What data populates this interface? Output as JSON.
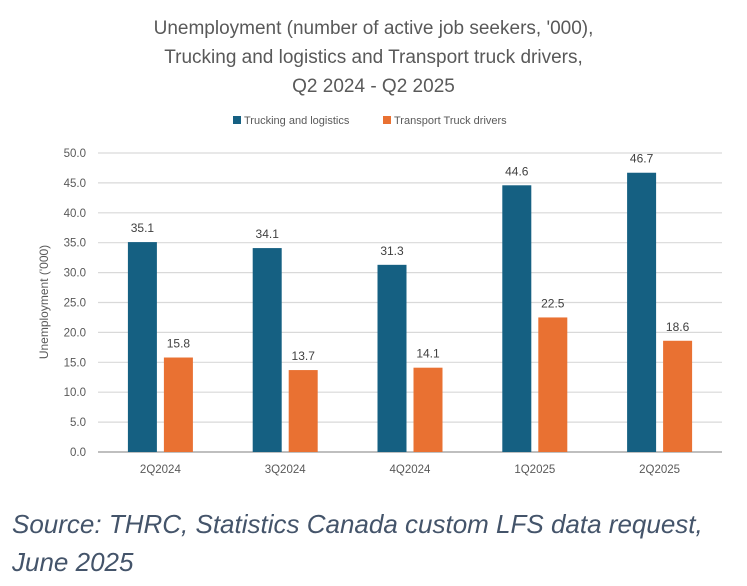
{
  "chart_data": {
    "type": "bar",
    "title_lines": [
      "Unemployment (number of active job seekers, '000),",
      "Trucking and logistics and Transport truck drivers,",
      "Q2 2024 - Q2 2025"
    ],
    "categories": [
      "2Q2024",
      "3Q2024",
      "4Q2024",
      "1Q2025",
      "2Q2025"
    ],
    "series": [
      {
        "name": "Trucking and logistics",
        "color": "#156082",
        "values": [
          35.1,
          34.1,
          31.3,
          44.6,
          46.7
        ]
      },
      {
        "name": "Transport Truck drivers",
        "color": "#e97132",
        "values": [
          15.8,
          13.7,
          14.1,
          22.5,
          18.6
        ]
      }
    ],
    "ylabel": "Unemployment ('000)",
    "xlabel": "",
    "ylim": [
      0,
      50
    ],
    "yticks": [
      "0.0",
      "5.0",
      "10.0",
      "15.0",
      "20.0",
      "25.0",
      "30.0",
      "35.0",
      "40.0",
      "45.0",
      "50.0"
    ],
    "grid": true,
    "legend": "top-center"
  },
  "source": {
    "line1": "Source: THRC, Statistics Canada custom LFS data request,",
    "line2": "June 2025"
  }
}
